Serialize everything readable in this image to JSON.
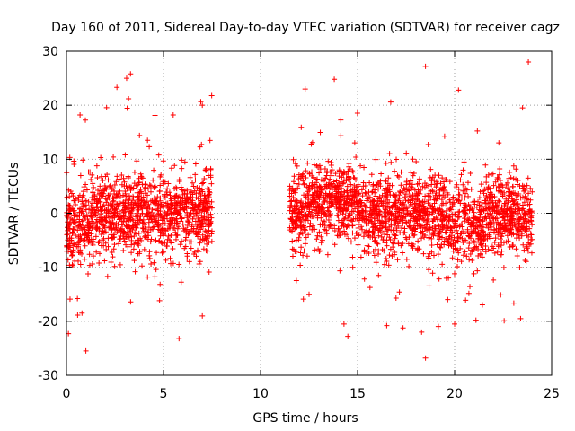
{
  "chart_data": {
    "type": "scatter",
    "title": "Day 160 of 2011, Sidereal Day-to-day VTEC variation (SDTVAR) for receiver cagz",
    "xlabel": "GPS time / hours",
    "ylabel": "SDTVAR / TECUs",
    "xlim": [
      0,
      25
    ],
    "ylim": [
      -30,
      30
    ],
    "xticks": [
      0,
      5,
      10,
      15,
      20,
      25
    ],
    "yticks": [
      -30,
      -20,
      -10,
      0,
      10,
      20,
      30
    ],
    "grid": true,
    "marker": "+",
    "color": "#ff0000",
    "series": [
      {
        "name": "SDTVAR",
        "coverage_segments": [
          [
            0.0,
            7.5
          ],
          [
            11.5,
            24.0
          ]
        ],
        "typical_spread": 3.5,
        "notable_points": [
          {
            "x": 3.3,
            "y": 25.8
          },
          {
            "x": 3.1,
            "y": 25.0
          },
          {
            "x": 2.6,
            "y": 23.3
          },
          {
            "x": 3.2,
            "y": 21.2
          },
          {
            "x": 7.0,
            "y": 20.0
          },
          {
            "x": 0.7,
            "y": 18.2
          },
          {
            "x": 5.5,
            "y": 18.2
          },
          {
            "x": 0.1,
            "y": -22.3
          },
          {
            "x": 1.0,
            "y": -25.5
          },
          {
            "x": 5.8,
            "y": -23.2
          },
          {
            "x": 0.8,
            "y": -18.5
          },
          {
            "x": 7.0,
            "y": -19.0
          },
          {
            "x": 12.3,
            "y": 23.0
          },
          {
            "x": 13.8,
            "y": 24.8
          },
          {
            "x": 14.5,
            "y": -22.8
          },
          {
            "x": 14.3,
            "y": -20.5
          },
          {
            "x": 18.5,
            "y": 27.2
          },
          {
            "x": 18.5,
            "y": -26.8
          },
          {
            "x": 18.3,
            "y": -22.0
          },
          {
            "x": 20.2,
            "y": 22.8
          },
          {
            "x": 21.1,
            "y": -19.8
          },
          {
            "x": 23.8,
            "y": 28.0
          },
          {
            "x": 23.5,
            "y": 19.5
          },
          {
            "x": 23.4,
            "y": -19.5
          },
          {
            "x": 16.5,
            "y": -20.8
          },
          {
            "x": 20.0,
            "y": -20.5
          },
          {
            "x": 12.5,
            "y": -15.0
          }
        ]
      }
    ]
  }
}
